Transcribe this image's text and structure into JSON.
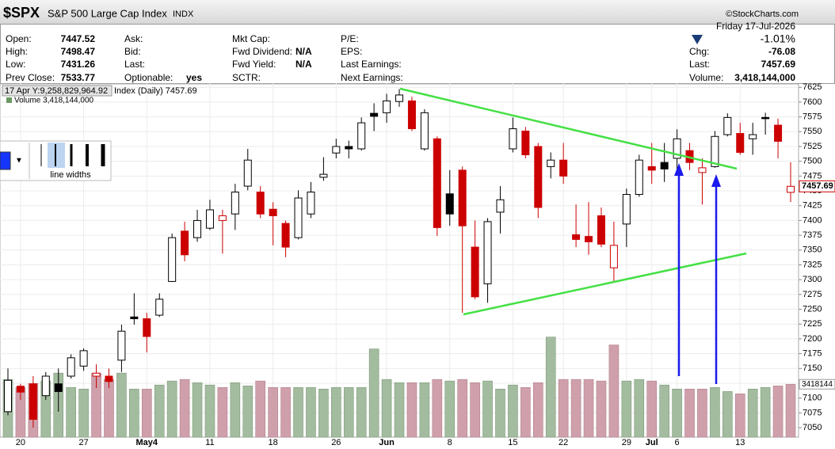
{
  "header": {
    "symbol": "$SPX",
    "name": "S&P 500 Large Cap Index",
    "exchange": "INDX",
    "credit": "©StockCharts.com"
  },
  "quote": {
    "col1": [
      {
        "label": "Open:",
        "value": 7447.52
      },
      {
        "label": "High:",
        "value": 7498.47
      },
      {
        "label": "Low:",
        "value": 7431.26
      },
      {
        "label": "Prev Close:",
        "value": 7533.77
      }
    ],
    "col2": [
      {
        "label": "Ask:"
      },
      {
        "label": "Bid:"
      },
      {
        "label": "Last:"
      },
      {
        "label": "Optionable:",
        "value": "yes"
      }
    ],
    "col3": [
      {
        "label": "Mkt Cap:"
      },
      {
        "label": "Fwd Dividend:",
        "value": "N/A"
      },
      {
        "label": "Fwd Yield:",
        "value": "N/A"
      },
      {
        "label": "SCTR:"
      }
    ],
    "col4": [
      {
        "label": "P/E:"
      },
      {
        "label": "EPS:"
      },
      {
        "label": "Last Earnings:"
      },
      {
        "label": "Next Earnings:"
      }
    ],
    "date": "Friday  17-Jul-2026",
    "pct_change": "-1.01%",
    "right": [
      {
        "label": "Chg:",
        "value": -76.08
      },
      {
        "label": "Last:",
        "value": 7457.69
      },
      {
        "label": "Volume:",
        "value": "3,418,144,000"
      }
    ]
  },
  "toolbar": {
    "label": "line widths"
  },
  "chart_data": {
    "type": "candlestick",
    "tooltip": "17 Apr Y:9,258,829,964.92",
    "price_legend": "Index (Daily) 7457.69",
    "volume_legend": "Volume 3,418,144,000",
    "categories": [
      null,
      "20",
      null,
      null,
      null,
      null,
      "27",
      null,
      null,
      null,
      null,
      "May4",
      null,
      null,
      null,
      null,
      "11",
      null,
      null,
      null,
      null,
      "18",
      null,
      null,
      null,
      null,
      "26",
      null,
      null,
      null,
      "Jun",
      null,
      null,
      null,
      null,
      "8",
      null,
      null,
      null,
      null,
      "15",
      null,
      null,
      null,
      "22",
      null,
      null,
      null,
      null,
      "29",
      null,
      "Jul",
      null,
      "6",
      null,
      null,
      null,
      null,
      "13",
      null,
      null,
      null,
      null
    ],
    "open": [
      7077,
      7120,
      7124,
      7104,
      7124,
      7137,
      7154,
      7137,
      7137,
      7164,
      7237,
      7234,
      7240,
      7297,
      7382,
      7371,
      7387,
      7400,
      7411,
      7458,
      7448,
      7419,
      7395,
      7371,
      7411,
      7473,
      7514,
      7525,
      7521,
      7581,
      7582,
      7601,
      7602,
      7521,
      7538,
      7445,
      7485,
      7355,
      7293,
      7414,
      7521,
      7551,
      7525,
      7491,
      7502,
      7376,
      7373,
      7408,
      7320,
      7394,
      7444,
      7491,
      7498,
      7505,
      7518,
      7481,
      7491,
      7545,
      7547,
      7538,
      7574,
      7561,
      7447.52
    ],
    "high": [
      7150,
      7124,
      7137,
      7144,
      7150,
      7174,
      7184,
      7157,
      7150,
      7224,
      7277,
      7244,
      7277,
      7378,
      7398,
      7418,
      7435,
      7418,
      7462,
      7521,
      7458,
      7431,
      7400,
      7451,
      7465,
      7507,
      7538,
      7535,
      7574,
      7598,
      7614,
      7622,
      7609,
      7588,
      7542,
      7485,
      7491,
      7400,
      7404,
      7458,
      7574,
      7558,
      7531,
      7515,
      7531,
      7427,
      7431,
      7422,
      7398,
      7454,
      7511,
      7531,
      7531,
      7554,
      7531,
      7505,
      7551,
      7581,
      7565,
      7565,
      7582,
      7572,
      7498.47
    ],
    "low": [
      7071,
      7097,
      7050,
      7097,
      7077,
      7133,
      7146,
      7117,
      7117,
      7144,
      7224,
      7177,
      7237,
      7296,
      7331,
      7364,
      7384,
      7344,
      7384,
      7451,
      7404,
      7358,
      7338,
      7368,
      7404,
      7467,
      7505,
      7505,
      7518,
      7551,
      7565,
      7592,
      7551,
      7518,
      7374,
      7391,
      7244,
      7267,
      7261,
      7378,
      7515,
      7505,
      7404,
      7471,
      7462,
      7355,
      7342,
      7355,
      7297,
      7355,
      7440,
      7462,
      7465,
      7485,
      7485,
      7427,
      7489,
      7542,
      7511,
      7511,
      7545,
      7505,
      7431.26
    ],
    "close": [
      7130,
      7110,
      7064,
      7137,
      7111,
      7168,
      7180,
      7142,
      7128,
      7213,
      7234,
      7204,
      7267,
      7371,
      7342,
      7400,
      7418,
      7408,
      7448,
      7502,
      7411,
      7408,
      7355,
      7438,
      7448,
      7478,
      7525,
      7521,
      7565,
      7576,
      7602,
      7612,
      7555,
      7582,
      7388,
      7411,
      7391,
      7271,
      7398,
      7435,
      7555,
      7511,
      7422,
      7502,
      7475,
      7368,
      7364,
      7360,
      7358,
      7444,
      7502,
      7485,
      7487,
      7538,
      7498,
      7489,
      7542,
      7574,
      7515,
      7545,
      7572,
      7533.77,
      7457.69
    ],
    "colors": [
      "#000000",
      "#cc0000",
      "#cc0000",
      "#000000",
      "#000000",
      "#000000",
      "#000000",
      "#cc0000",
      "#cc0000",
      "#000000",
      "#000000",
      "#cc0000",
      "#000000",
      "#000000",
      "#cc0000",
      "#000000",
      "#000000",
      "#cc0000",
      "#000000",
      "#000000",
      "#cc0000",
      "#cc0000",
      "#cc0000",
      "#000000",
      "#000000",
      "#000000",
      "#000000",
      "#000000",
      "#000000",
      "#000000",
      "#000000",
      "#000000",
      "#cc0000",
      "#000000",
      "#cc0000",
      "#000000",
      "#cc0000",
      "#cc0000",
      "#000000",
      "#000000",
      "#000000",
      "#cc0000",
      "#cc0000",
      "#000000",
      "#cc0000",
      "#cc0000",
      "#cc0000",
      "#cc0000",
      "#cc0000",
      "#000000",
      "#000000",
      "#cc0000",
      "#000000",
      "#000000",
      "#cc0000",
      "#cc0000",
      "#000000",
      "#000000",
      "#cc0000",
      "#000000",
      "#000000",
      "#cc0000",
      "#cc0000"
    ],
    "volume": [
      3730000000,
      3210000000,
      3470000000,
      3630000000,
      4140000000,
      3210000000,
      3110000000,
      4140000000,
      3730000000,
      4140000000,
      3110000000,
      3110000000,
      3370000000,
      3630000000,
      3730000000,
      3520000000,
      3370000000,
      3210000000,
      3520000000,
      3310000000,
      3630000000,
      3210000000,
      3210000000,
      3210000000,
      3210000000,
      3110000000,
      3210000000,
      3210000000,
      3210000000,
      5700000000,
      3730000000,
      3520000000,
      3520000000,
      3520000000,
      3730000000,
      3630000000,
      3730000000,
      3520000000,
      3630000000,
      3110000000,
      3370000000,
      3210000000,
      3520000000,
      6470000000,
      3730000000,
      3730000000,
      3730000000,
      3630000000,
      5960000000,
      3630000000,
      3730000000,
      3630000000,
      3370000000,
      3110000000,
      3110000000,
      3110000000,
      3210000000,
      2950000000,
      2800000000,
      3110000000,
      3210000000,
      3310000000,
      3418144000
    ],
    "up_volume_color": "#a3bc9f",
    "down_volume_color": "#cfa0ab",
    "volume_ylim": [
      0,
      22890000000
    ],
    "ylim": [
      7034,
      7632
    ],
    "yticks": [
      7050,
      7075,
      7100,
      7125,
      7150,
      7175,
      7200,
      7225,
      7250,
      7275,
      7300,
      7325,
      7350,
      7375,
      7400,
      7425,
      7450,
      7475,
      7500,
      7525,
      7550,
      7575,
      7600,
      7625
    ],
    "grid": true,
    "last_price": 7457.69,
    "last_volume_label": 3418144
  }
}
